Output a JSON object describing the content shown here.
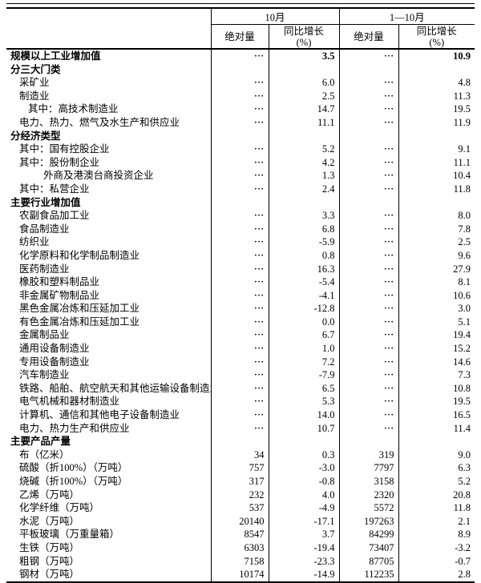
{
  "table": {
    "header": {
      "groups": [
        "10月",
        "1—10月"
      ],
      "absolute": "绝对量",
      "yoy": "同比增长",
      "yoy_unit": "(%)",
      "col_keys": [
        "october-absolute",
        "october-yoy",
        "cumulative-absolute",
        "cumulative-yoy"
      ]
    },
    "na_marker": "···",
    "rows": [
      {
        "label": "规模以上工业增加值",
        "indent": 0,
        "bold": true,
        "v": [
          "···",
          "3.5",
          "···",
          "10.9"
        ]
      },
      {
        "label": "分三大门类",
        "indent": 0,
        "bold": true,
        "v": [
          "",
          "",
          "",
          ""
        ]
      },
      {
        "label": "采矿业",
        "indent": 1,
        "bold": false,
        "v": [
          "···",
          "6.0",
          "···",
          "4.8"
        ]
      },
      {
        "label": "制造业",
        "indent": 1,
        "bold": false,
        "v": [
          "···",
          "2.5",
          "···",
          "11.3"
        ]
      },
      {
        "label": "其中：高技术制造业",
        "indent": 2,
        "bold": false,
        "v": [
          "···",
          "14.7",
          "···",
          "19.5"
        ]
      },
      {
        "label": "电力、热力、燃气及水生产和供应业",
        "indent": 1,
        "bold": false,
        "v": [
          "···",
          "11.1",
          "···",
          "11.9"
        ]
      },
      {
        "label": "分经济类型",
        "indent": 0,
        "bold": true,
        "v": [
          "",
          "",
          "",
          ""
        ]
      },
      {
        "label": "其中：国有控股企业",
        "indent": 1,
        "bold": false,
        "v": [
          "···",
          "5.2",
          "···",
          "9.1"
        ]
      },
      {
        "label": "其中：股份制企业",
        "indent": 1,
        "bold": false,
        "v": [
          "···",
          "4.2",
          "···",
          "11.1"
        ]
      },
      {
        "label": "外商及港澳台商投资企业",
        "indent": 3,
        "bold": false,
        "v": [
          "···",
          "1.3",
          "···",
          "10.4"
        ]
      },
      {
        "label": "其中：私营企业",
        "indent": 1,
        "bold": false,
        "v": [
          "···",
          "2.4",
          "···",
          "11.8"
        ]
      },
      {
        "label": "主要行业增加值",
        "indent": 0,
        "bold": true,
        "v": [
          "",
          "",
          "",
          ""
        ]
      },
      {
        "label": "农副食品加工业",
        "indent": 1,
        "bold": false,
        "v": [
          "···",
          "3.3",
          "···",
          "8.0"
        ]
      },
      {
        "label": "食品制造业",
        "indent": 1,
        "bold": false,
        "v": [
          "···",
          "6.8",
          "···",
          "7.8"
        ]
      },
      {
        "label": "纺织业",
        "indent": 1,
        "bold": false,
        "v": [
          "···",
          "-5.9",
          "···",
          "2.5"
        ]
      },
      {
        "label": "化学原料和化学制品制造业",
        "indent": 1,
        "bold": false,
        "v": [
          "···",
          "0.8",
          "···",
          "9.6"
        ]
      },
      {
        "label": "医药制造业",
        "indent": 1,
        "bold": false,
        "v": [
          "···",
          "16.3",
          "···",
          "27.9"
        ]
      },
      {
        "label": "橡胶和塑料制品业",
        "indent": 1,
        "bold": false,
        "v": [
          "···",
          "-5.4",
          "···",
          "8.1"
        ]
      },
      {
        "label": "非金属矿物制品业",
        "indent": 1,
        "bold": false,
        "v": [
          "···",
          "-4.1",
          "···",
          "10.6"
        ]
      },
      {
        "label": "黑色金属冶炼和压延加工业",
        "indent": 1,
        "bold": false,
        "v": [
          "···",
          "-12.8",
          "···",
          "3.0"
        ]
      },
      {
        "label": "有色金属冶炼和压延加工业",
        "indent": 1,
        "bold": false,
        "v": [
          "···",
          "0.0",
          "···",
          "5.1"
        ]
      },
      {
        "label": "金属制品业",
        "indent": 1,
        "bold": false,
        "v": [
          "···",
          "6.7",
          "···",
          "19.4"
        ]
      },
      {
        "label": "通用设备制造业",
        "indent": 1,
        "bold": false,
        "v": [
          "···",
          "1.0",
          "···",
          "15.2"
        ]
      },
      {
        "label": "专用设备制造业",
        "indent": 1,
        "bold": false,
        "v": [
          "···",
          "7.2",
          "···",
          "14.6"
        ]
      },
      {
        "label": "汽车制造业",
        "indent": 1,
        "bold": false,
        "v": [
          "···",
          "-7.9",
          "···",
          "7.3"
        ]
      },
      {
        "label": "铁路、船舶、航空航天和其他运输设备制造业",
        "indent": 1,
        "bold": false,
        "v": [
          "···",
          "6.5",
          "···",
          "10.8"
        ]
      },
      {
        "label": "电气机械和器材制造业",
        "indent": 1,
        "bold": false,
        "v": [
          "···",
          "5.3",
          "···",
          "19.5"
        ]
      },
      {
        "label": "计算机、通信和其他电子设备制造业",
        "indent": 1,
        "bold": false,
        "v": [
          "···",
          "14.0",
          "···",
          "16.5"
        ]
      },
      {
        "label": "电力、热力生产和供应业",
        "indent": 1,
        "bold": false,
        "v": [
          "···",
          "10.7",
          "···",
          "11.4"
        ]
      },
      {
        "label": "主要产品产量",
        "indent": 0,
        "bold": true,
        "v": [
          "",
          "",
          "",
          ""
        ]
      },
      {
        "label": "布（亿米）",
        "indent": 1,
        "bold": false,
        "v": [
          "34",
          "0.3",
          "319",
          "9.0"
        ]
      },
      {
        "label": "硫酸（折100%）（万吨）",
        "indent": 1,
        "bold": false,
        "v": [
          "757",
          "-3.0",
          "7797",
          "6.3"
        ]
      },
      {
        "label": "烧碱（折100%）（万吨）",
        "indent": 1,
        "bold": false,
        "v": [
          "317",
          "-0.8",
          "3158",
          "5.2"
        ]
      },
      {
        "label": "乙烯（万吨）",
        "indent": 1,
        "bold": false,
        "v": [
          "232",
          "4.0",
          "2320",
          "20.8"
        ]
      },
      {
        "label": "化学纤维（万吨）",
        "indent": 1,
        "bold": false,
        "v": [
          "537",
          "-4.9",
          "5572",
          "11.8"
        ]
      },
      {
        "label": "水泥（万吨）",
        "indent": 1,
        "bold": false,
        "v": [
          "20140",
          "-17.1",
          "197263",
          "2.1"
        ]
      },
      {
        "label": "平板玻璃（万重量箱）",
        "indent": 1,
        "bold": false,
        "v": [
          "8547",
          "3.7",
          "84299",
          "8.9"
        ]
      },
      {
        "label": "生铁（万吨）",
        "indent": 1,
        "bold": false,
        "v": [
          "6303",
          "-19.4",
          "73407",
          "-3.2"
        ]
      },
      {
        "label": "粗钢（万吨）",
        "indent": 1,
        "bold": false,
        "v": [
          "7158",
          "-23.3",
          "87705",
          "-0.7"
        ]
      },
      {
        "label": "钢材（万吨）",
        "indent": 1,
        "bold": false,
        "v": [
          "10174",
          "-14.9",
          "112235",
          "2.8"
        ]
      }
    ]
  }
}
